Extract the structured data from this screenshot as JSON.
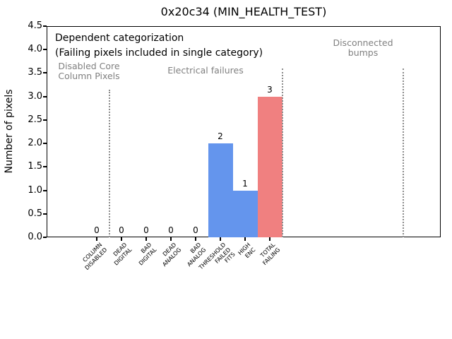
{
  "title": "0x20c34 (MIN_HEALTH_TEST)",
  "chart_data": {
    "type": "bar",
    "title": "0x20c34 (MIN_HEALTH_TEST)",
    "xlabel": "",
    "ylabel": "Number of pixels",
    "ylim": [
      0,
      4.5
    ],
    "ytick_labels": [
      "0.0",
      "0.5",
      "1.0",
      "1.5",
      "2.0",
      "2.5",
      "3.0",
      "3.5",
      "4.0",
      "4.5"
    ],
    "grid": false,
    "legend": null,
    "categories": [
      [
        "COLUMN",
        "DISABLED"
      ],
      [
        "DEAD",
        "DIGITAL"
      ],
      [
        "BAD",
        "DIGITAL"
      ],
      [
        "DEAD",
        "ANALOG"
      ],
      [
        "BAD",
        "ANALOG"
      ],
      [
        "THRESHOLD",
        "FAILED",
        "FITS"
      ],
      [
        "HIGH",
        "ENC"
      ],
      [
        "TOTAL",
        "FAILING"
      ]
    ],
    "values": [
      0,
      0,
      0,
      0,
      0,
      2,
      1,
      3
    ],
    "bar_value_labels": [
      "0",
      "0",
      "0",
      "0",
      "0",
      "2",
      "1",
      "3"
    ],
    "bar_colors": [
      "#6495ed",
      "#6495ed",
      "#6495ed",
      "#6495ed",
      "#6495ed",
      "#6495ed",
      "#6495ed",
      "#f08080"
    ],
    "annotations": [
      {
        "id": "dependent-note",
        "lines": [
          "Dependent categorization"
        ],
        "color": "#000000"
      },
      {
        "id": "failing-note",
        "lines": [
          "(Failing pixels included in single category)"
        ],
        "color": "#000000"
      },
      {
        "id": "disabled-core-note",
        "lines": [
          "Disabled Core",
          "Column Pixels"
        ],
        "color": "#808080"
      },
      {
        "id": "electrical-note",
        "lines": [
          "Electrical failures"
        ],
        "color": "#808080"
      },
      {
        "id": "disconnected-note",
        "lines": [
          "Disconnected",
          "bumps"
        ],
        "color": "#808080"
      }
    ],
    "separators": [
      {
        "x": 0.5,
        "ymax": 3.15
      },
      {
        "x": 7.5,
        "ymax": 3.6
      },
      {
        "x": 12.4,
        "ymax": 3.6
      }
    ],
    "colors": {
      "blue_bar": "#6495ed",
      "red_bar": "#f08080",
      "muted_text": "#808080",
      "separator_line": "#8c8c8c"
    }
  }
}
